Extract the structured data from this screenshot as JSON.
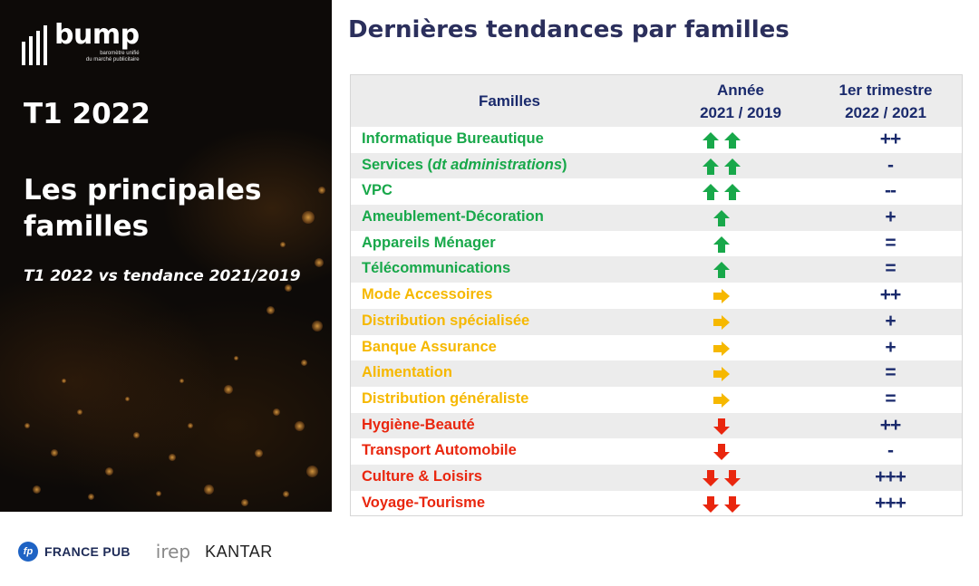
{
  "brand": {
    "word": "bump",
    "tagline_line1": "baromètre unifié",
    "tagline_line2": "du marché publicitaire"
  },
  "panel": {
    "period": "T1 2022",
    "title": "Les principales familles",
    "subtitle": "T1 2022 vs tendance 2021/2019"
  },
  "footer": {
    "francepub_badge": "fp",
    "francepub": "FRANCE PUB",
    "irep": "irep",
    "kantar": "KANTAR"
  },
  "main_title": "Dernières tendances par familles",
  "table": {
    "headers": {
      "families": "Familles",
      "annee_line1": "Année",
      "annee_line2": "2021 / 2019",
      "trimestre_line1": "1er trimestre",
      "trimestre_line2": "2022 / 2021"
    },
    "colors": {
      "green": "#18a84a",
      "yellow": "#f6b800",
      "red": "#e9260e",
      "navy": "#1a2a6c"
    },
    "rows": [
      {
        "name": "Informatique Bureautique",
        "color": "green",
        "arrow": "up",
        "arrow_count": 2,
        "trend": "++"
      },
      {
        "name": "Services (",
        "name_italic": "dt administrations",
        "name_end": ")",
        "color": "green",
        "arrow": "up",
        "arrow_count": 2,
        "trend": "-"
      },
      {
        "name": "VPC",
        "color": "green",
        "arrow": "up",
        "arrow_count": 2,
        "trend": "--"
      },
      {
        "name": "Ameublement-Décoration",
        "color": "green",
        "arrow": "up",
        "arrow_count": 1,
        "trend": "+"
      },
      {
        "name": "Appareils Ménager",
        "color": "green",
        "arrow": "up",
        "arrow_count": 1,
        "trend": "="
      },
      {
        "name": "Télécommunications",
        "color": "green",
        "arrow": "up",
        "arrow_count": 1,
        "trend": "="
      },
      {
        "name": "Mode Accessoires",
        "color": "yellow",
        "arrow": "right",
        "arrow_count": 1,
        "trend": "++"
      },
      {
        "name": "Distribution spécialisée",
        "color": "yellow",
        "arrow": "right",
        "arrow_count": 1,
        "trend": "+"
      },
      {
        "name": "Banque Assurance",
        "color": "yellow",
        "arrow": "right",
        "arrow_count": 1,
        "trend": "+"
      },
      {
        "name": "Alimentation",
        "color": "yellow",
        "arrow": "right",
        "arrow_count": 1,
        "trend": "="
      },
      {
        "name": "Distribution généraliste",
        "color": "yellow",
        "arrow": "right",
        "arrow_count": 1,
        "trend": "="
      },
      {
        "name": "Hygiène-Beauté",
        "color": "red",
        "arrow": "down",
        "arrow_count": 1,
        "trend": "++"
      },
      {
        "name": "Transport Automobile",
        "color": "red",
        "arrow": "down",
        "arrow_count": 1,
        "trend": "-"
      },
      {
        "name": "Culture & Loisirs",
        "color": "red",
        "arrow": "down",
        "arrow_count": 2,
        "trend": "+++"
      },
      {
        "name": "Voyage-Tourisme",
        "color": "red",
        "arrow": "down",
        "arrow_count": 2,
        "trend": "+++"
      }
    ]
  }
}
